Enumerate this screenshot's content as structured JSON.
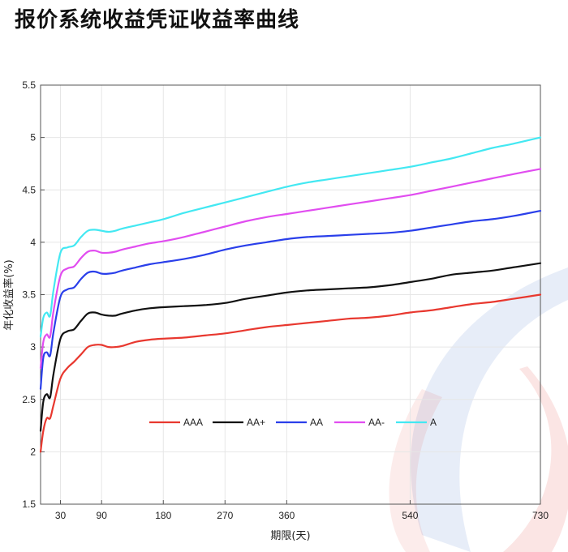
{
  "page": {
    "title": "报价系统收益凭证收益率曲线"
  },
  "chart_data": {
    "type": "line",
    "xlabel": "期限(天)",
    "ylabel": "年化收益率(%)",
    "xlim": [
      1,
      730
    ],
    "ylim": [
      1.5,
      5.5
    ],
    "xticks": [
      30,
      90,
      180,
      270,
      360,
      540,
      730
    ],
    "yticks": [
      "1.5",
      "2",
      "2.5",
      "3",
      "3.5",
      "4",
      "4.5",
      "5",
      "5.5"
    ],
    "grid": true,
    "legend_position": "lower-center",
    "x": [
      1,
      5,
      10,
      15,
      20,
      30,
      40,
      50,
      60,
      70,
      80,
      90,
      100,
      110,
      120,
      140,
      160,
      180,
      210,
      240,
      270,
      300,
      330,
      360,
      390,
      420,
      450,
      480,
      510,
      540,
      570,
      600,
      630,
      660,
      690,
      730
    ],
    "series": [
      {
        "name": "AAA",
        "color": "#e8382f",
        "values": [
          2.0,
          2.2,
          2.32,
          2.32,
          2.45,
          2.7,
          2.8,
          2.86,
          2.93,
          3.0,
          3.02,
          3.02,
          3.0,
          3.0,
          3.01,
          3.05,
          3.07,
          3.08,
          3.09,
          3.11,
          3.13,
          3.16,
          3.19,
          3.21,
          3.23,
          3.25,
          3.27,
          3.28,
          3.3,
          3.33,
          3.35,
          3.38,
          3.41,
          3.43,
          3.46,
          3.5
        ]
      },
      {
        "name": "AA+",
        "color": "#111111",
        "values": [
          2.2,
          2.48,
          2.55,
          2.52,
          2.75,
          3.08,
          3.15,
          3.17,
          3.25,
          3.32,
          3.33,
          3.31,
          3.3,
          3.3,
          3.32,
          3.35,
          3.37,
          3.38,
          3.39,
          3.4,
          3.42,
          3.46,
          3.49,
          3.52,
          3.54,
          3.55,
          3.56,
          3.57,
          3.59,
          3.62,
          3.65,
          3.69,
          3.71,
          3.73,
          3.76,
          3.8
        ]
      },
      {
        "name": "AA",
        "color": "#2a3fea",
        "values": [
          2.6,
          2.9,
          2.95,
          2.92,
          3.15,
          3.48,
          3.55,
          3.57,
          3.65,
          3.71,
          3.72,
          3.7,
          3.7,
          3.71,
          3.73,
          3.76,
          3.79,
          3.81,
          3.84,
          3.88,
          3.93,
          3.97,
          4.0,
          4.03,
          4.05,
          4.06,
          4.07,
          4.08,
          4.09,
          4.11,
          4.14,
          4.17,
          4.2,
          4.22,
          4.25,
          4.3
        ]
      },
      {
        "name": "AA-",
        "color": "#e14df0",
        "values": [
          2.8,
          3.05,
          3.12,
          3.1,
          3.35,
          3.68,
          3.75,
          3.77,
          3.85,
          3.91,
          3.92,
          3.9,
          3.9,
          3.91,
          3.93,
          3.96,
          3.99,
          4.01,
          4.05,
          4.1,
          4.15,
          4.2,
          4.24,
          4.27,
          4.3,
          4.33,
          4.36,
          4.39,
          4.42,
          4.45,
          4.49,
          4.53,
          4.57,
          4.61,
          4.65,
          4.7
        ]
      },
      {
        "name": "A",
        "color": "#43e8f2",
        "values": [
          3.1,
          3.28,
          3.33,
          3.3,
          3.55,
          3.9,
          3.95,
          3.97,
          4.05,
          4.11,
          4.12,
          4.11,
          4.1,
          4.11,
          4.13,
          4.16,
          4.19,
          4.22,
          4.28,
          4.33,
          4.38,
          4.43,
          4.48,
          4.53,
          4.57,
          4.6,
          4.63,
          4.66,
          4.69,
          4.72,
          4.76,
          4.8,
          4.85,
          4.9,
          4.94,
          5.0
        ]
      }
    ]
  },
  "watermark": {
    "colors": [
      "#3b6fc4",
      "#e5483d"
    ]
  }
}
